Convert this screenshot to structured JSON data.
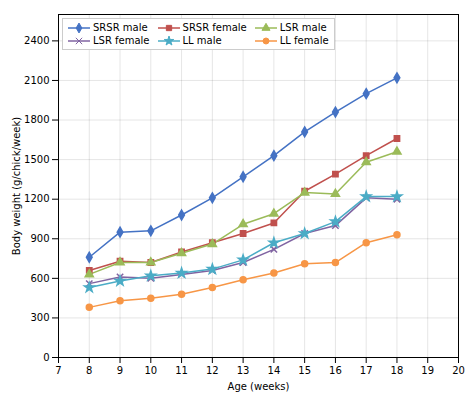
{
  "chart_data": {
    "type": "line",
    "x": [
      8,
      9,
      10,
      11,
      12,
      13,
      14,
      15,
      16,
      17,
      18
    ],
    "series": [
      {
        "name": "SRSR male",
        "color": "#4472C4",
        "marker": "diamond",
        "values": [
          760,
          950,
          960,
          1080,
          1210,
          1370,
          1530,
          1710,
          1860,
          2000,
          2120
        ]
      },
      {
        "name": "SRSR female",
        "color": "#C0504D",
        "marker": "square",
        "values": [
          660,
          730,
          720,
          800,
          870,
          940,
          1020,
          1260,
          1390,
          1530,
          1660
        ]
      },
      {
        "name": "LSR male",
        "color": "#9BBB59",
        "marker": "triangle",
        "values": [
          630,
          720,
          720,
          790,
          860,
          1010,
          1090,
          1250,
          1240,
          1480,
          1560
        ]
      },
      {
        "name": "LSR female",
        "color": "#8064A2",
        "marker": "times",
        "values": [
          560,
          610,
          600,
          630,
          660,
          720,
          820,
          940,
          1000,
          1210,
          1200
        ]
      },
      {
        "name": "LL male",
        "color": "#4BACC6",
        "marker": "star",
        "values": [
          530,
          580,
          620,
          640,
          670,
          740,
          870,
          940,
          1030,
          1220,
          1220
        ]
      },
      {
        "name": "LL female",
        "color": "#F79646",
        "marker": "circle",
        "values": [
          380,
          430,
          450,
          480,
          530,
          590,
          640,
          710,
          720,
          870,
          930
        ]
      }
    ],
    "xlim": [
      7,
      20
    ],
    "ylim": [
      0,
      2600
    ],
    "xticks": [
      7,
      8,
      9,
      10,
      11,
      12,
      13,
      14,
      15,
      16,
      17,
      18,
      19,
      20
    ],
    "yticks": [
      0,
      300,
      600,
      900,
      1200,
      1500,
      1800,
      2100,
      2400
    ],
    "xlabel": "Age (weeks)",
    "ylabel": "Body weight (g/chick/week)",
    "grid": true,
    "legend": "upper left"
  }
}
